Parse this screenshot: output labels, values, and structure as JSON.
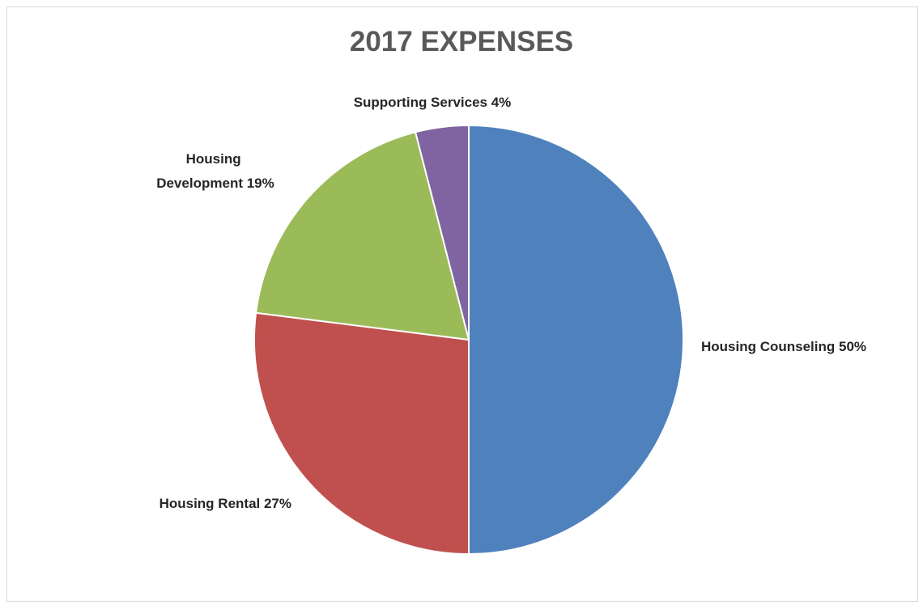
{
  "chart_data": {
    "type": "pie",
    "title": "2017 EXPENSES",
    "slices": [
      {
        "name": "Housing Counseling",
        "value": 50,
        "label": "Housing Counseling 50%",
        "color": "#4f81bd"
      },
      {
        "name": "Housing Rental",
        "value": 27,
        "label": "Housing Rental 27%",
        "color": "#c0504d"
      },
      {
        "name": "Housing Development",
        "value": 19,
        "label_lines": [
          "Housing",
          "Development 19%"
        ],
        "color": "#9bbb59"
      },
      {
        "name": "Supporting Services",
        "value": 4,
        "label": "Supporting Services 4%",
        "color": "#8064a2"
      }
    ],
    "start_angle": "12 o'clock",
    "direction": "clockwise",
    "legend": "none"
  }
}
